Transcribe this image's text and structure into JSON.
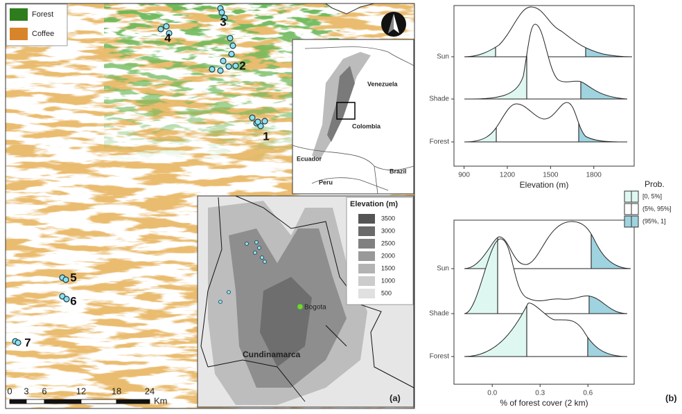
{
  "map": {
    "legend": [
      "Forest",
      "Coffee"
    ],
    "sites": [
      "1",
      "2",
      "3",
      "4",
      "5",
      "6",
      "7"
    ],
    "scale_bar": {
      "labels": [
        "0",
        "3",
        "6",
        "12",
        "18",
        "24"
      ],
      "unit": "Km"
    },
    "inset_country": {
      "labels": [
        "Venezuela",
        "Colombia",
        "Ecuador",
        "Peru",
        "Brazil"
      ]
    },
    "inset_region": {
      "legend_title": "Elevation (m)",
      "legend": [
        3500,
        3000,
        2500,
        2000,
        1500,
        1000,
        500
      ],
      "city": "Bogota",
      "region": "Cundinamarca"
    },
    "panel_label": "(a)"
  },
  "density_plots": {
    "panels": [
      {
        "categories": [
          "Sun",
          "Shade",
          "Forest"
        ],
        "xlim": [
          830,
          2080
        ],
        "xticks": [
          900,
          1200,
          1500,
          1800
        ],
        "xlabel": "Elevation (m)"
      },
      {
        "categories": [
          "Sun",
          "Shade",
          "Forest"
        ],
        "xlim": [
          -0.24,
          0.89
        ],
        "xticks": [
          {
            "value": 0,
            "label": "0.0"
          },
          {
            "value": 0.3,
            "label": "0.3"
          },
          {
            "value": 0.6,
            "label": "0.6"
          }
        ],
        "xlabel": "% of forest cover (2 km)"
      }
    ],
    "legend_title": "Prob.",
    "legend": [
      "[0, 5%]",
      "(5%, 95%]",
      "(95%, 1]"
    ],
    "panel_label": "(b)"
  }
}
